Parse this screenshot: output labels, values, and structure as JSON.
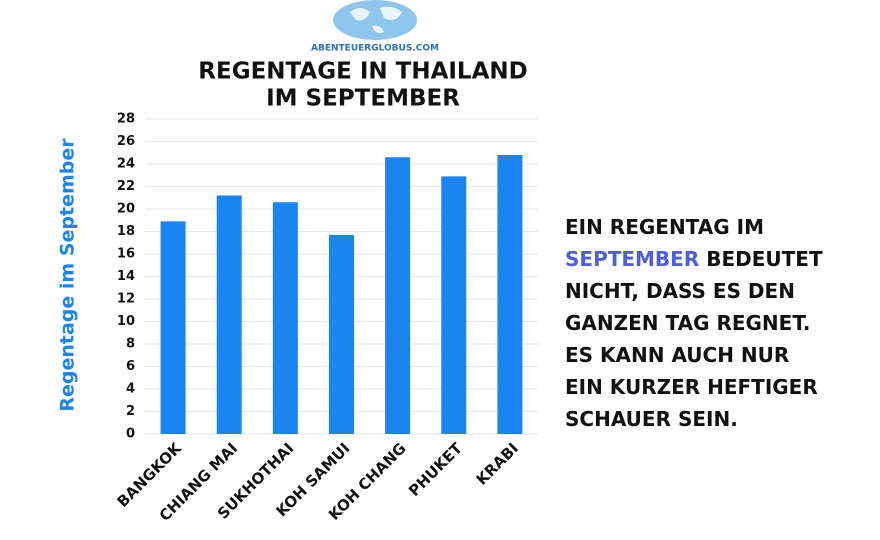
{
  "chart_data": {
    "type": "bar",
    "logo_text": "ABENTEUERGLOBUS.COM",
    "title": [
      "REGENTAGE IN THAILAND",
      "IM SEPTEMBER"
    ],
    "y_label": "Regentage im September",
    "categories": [
      "BANGKOK",
      "CHIANG MAI",
      "SUKHOTHAI",
      "KOH SAMUI",
      "KOH CHANG",
      "PHUKET",
      "KRABI"
    ],
    "values": [
      18.9,
      21.2,
      20.6,
      17.7,
      24.6,
      22.9,
      24.8
    ],
    "color": "#1a85f0",
    "ylim": [
      0,
      28
    ],
    "yticks": [
      0,
      2,
      4,
      6,
      8,
      10,
      12,
      14,
      16,
      18,
      20,
      22,
      24,
      26,
      28
    ],
    "grid": true,
    "annotation_lines": [
      [
        "EIN REGENTAG IM"
      ],
      [
        {
          "text": "SEPTEMBER",
          "color": "#4d5fe0"
        },
        "BEDEUTET"
      ],
      [
        "NICHT, DASS ES DEN"
      ],
      [
        "GANZEN TAG REGNET."
      ],
      [
        "ES KANN AUCH NUR"
      ],
      [
        "EIN KURZER HEFTIGER"
      ],
      [
        "SCHAUER SEIN."
      ]
    ]
  }
}
